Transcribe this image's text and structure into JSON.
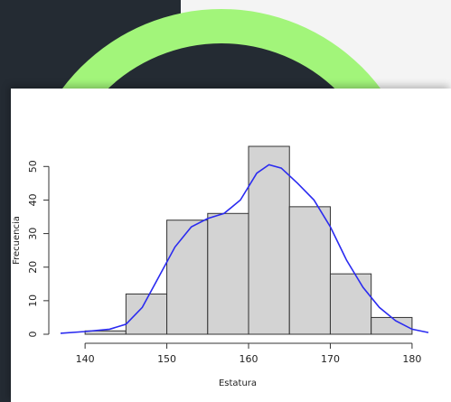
{
  "colors": {
    "dark_panel": "#242b33",
    "accent_green": "#a2f57a",
    "page_bg": "#f4f4f4",
    "bar_fill": "#d3d3d3",
    "bar_stroke": "#333333",
    "density_line": "#2b2bf0"
  },
  "chart_data": {
    "type": "bar",
    "subtype": "histogram-with-density",
    "title": "",
    "xlabel": "Estatura",
    "ylabel": "Frecuencia",
    "bins": [
      {
        "from": 140,
        "to": 145,
        "count": 1
      },
      {
        "from": 145,
        "to": 150,
        "count": 12
      },
      {
        "from": 150,
        "to": 155,
        "count": 34
      },
      {
        "from": 155,
        "to": 160,
        "count": 36
      },
      {
        "from": 160,
        "to": 165,
        "count": 56
      },
      {
        "from": 165,
        "to": 170,
        "count": 38
      },
      {
        "from": 170,
        "to": 175,
        "count": 18
      },
      {
        "from": 175,
        "to": 180,
        "count": 5
      }
    ],
    "density_curve": {
      "x": [
        137,
        140,
        143,
        145,
        147,
        149,
        151,
        153,
        155,
        157,
        159,
        161,
        162.5,
        164,
        166,
        168,
        170,
        172,
        174,
        176,
        178,
        180,
        182
      ],
      "y": [
        0.3,
        0.8,
        1.5,
        3,
        8,
        17,
        26,
        32,
        34.5,
        36,
        40,
        48,
        50.5,
        49.5,
        45,
        40,
        32,
        22,
        14,
        8,
        4,
        1.5,
        0.5
      ]
    },
    "x_ticks": [
      140,
      150,
      160,
      170,
      180
    ],
    "y_ticks": [
      0,
      10,
      20,
      30,
      40,
      50
    ],
    "xlim": [
      137,
      182
    ],
    "ylim": [
      0,
      56
    ],
    "grid": false,
    "legend": "none"
  }
}
